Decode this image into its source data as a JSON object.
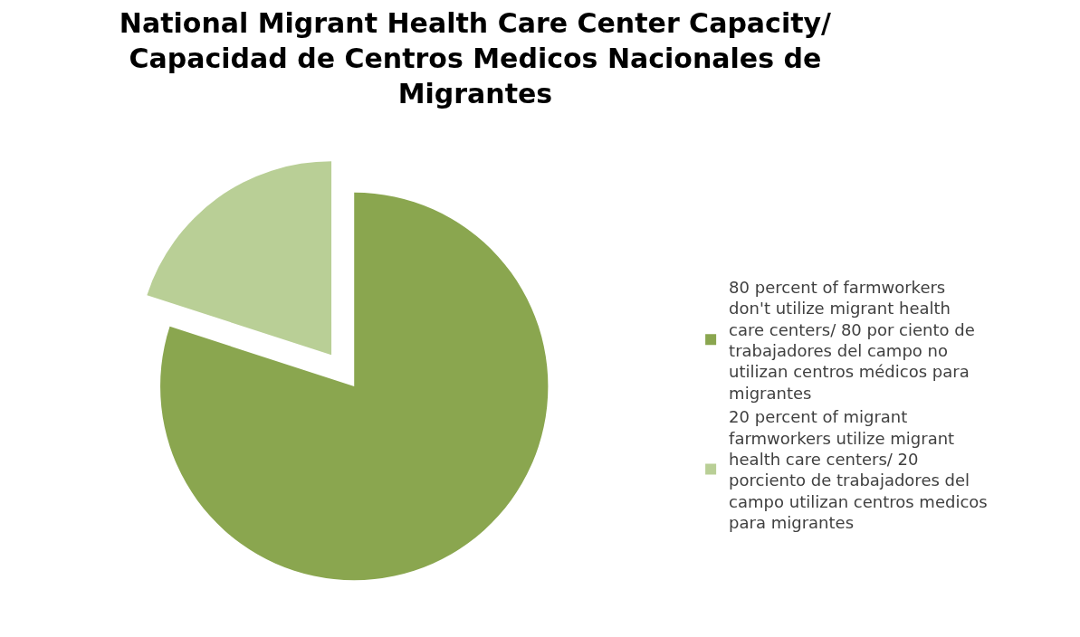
{
  "chart_data": {
    "type": "pie",
    "title": "National Migrant Health Care Center Capacity/ Capacidad de Centros Medicos Nacionales de Migrantes",
    "categories": [
      "80 percent of farmworkers don't utilize migrant health care centers/ 80 por ciento de trabajadores del campo no utilizan centros médicos para migrantes",
      "20 percent of migrant farmworkers utilize migrant health care centers/ 20 porciento de trabajadores del campo utilizan centros medicos para migrantes"
    ],
    "values": [
      80,
      20
    ],
    "colors": [
      "#8aa64f",
      "#b9cf96"
    ],
    "legend": "right"
  }
}
